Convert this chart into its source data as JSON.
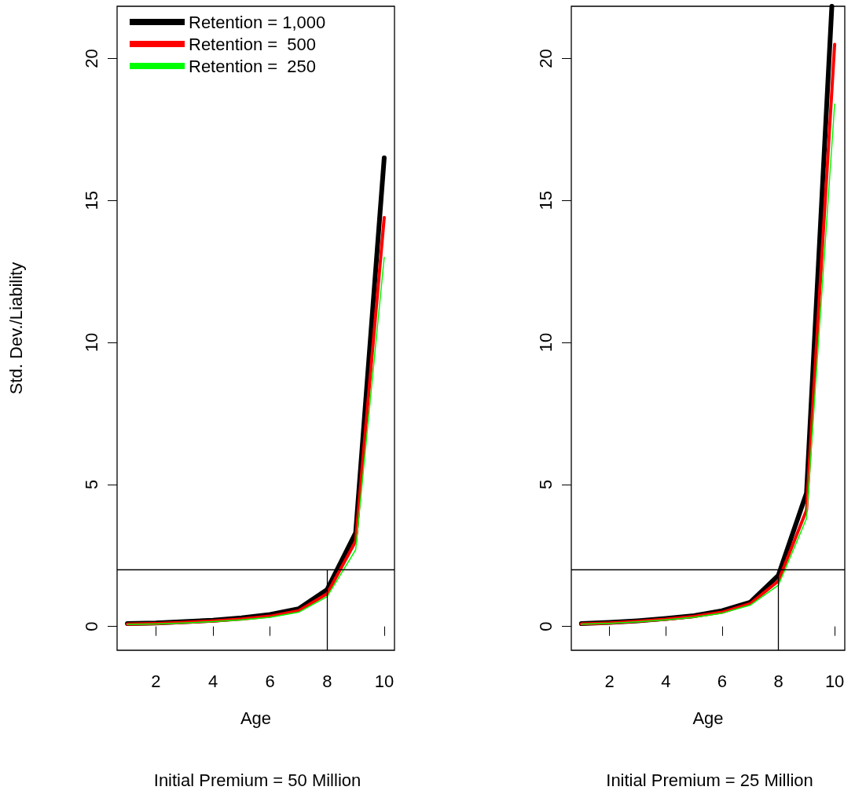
{
  "chart_data": [
    {
      "type": "line",
      "subtitle": "Initial Premium = 50 Million",
      "xlabel": "Age",
      "ylabel": "Std. Dev./Liability",
      "x": [
        1,
        2,
        3,
        4,
        5,
        6,
        7,
        8,
        9,
        10
      ],
      "series": [
        {
          "name": "Retention = 1,000",
          "color": "#000000",
          "values": [
            0.1,
            0.12,
            0.17,
            0.22,
            0.3,
            0.42,
            0.62,
            1.3,
            3.3,
            16.5
          ]
        },
        {
          "name": "Retention =  500",
          "color": "#ff0000",
          "values": [
            0.08,
            0.1,
            0.14,
            0.19,
            0.26,
            0.36,
            0.55,
            1.15,
            3.0,
            14.4
          ]
        },
        {
          "name": "Retention =  250",
          "color": "#00ff00",
          "values": [
            0.07,
            0.09,
            0.12,
            0.17,
            0.23,
            0.32,
            0.5,
            1.05,
            2.7,
            13.0
          ]
        }
      ],
      "xlim": [
        0.64,
        10.36
      ],
      "xticks": [
        2,
        4,
        6,
        8,
        10
      ],
      "ylim": [
        -0.84,
        21.84
      ],
      "yticks": [
        0,
        5,
        10,
        15,
        20
      ],
      "ref_lines": [
        {
          "axis": "y",
          "value": 2
        },
        {
          "axis": "x",
          "value": 8
        }
      ],
      "legend": "top",
      "marker": "none",
      "line_style": "solid"
    },
    {
      "type": "line",
      "subtitle": "Initial Premium = 25 Million",
      "xlabel": "Age",
      "x": [
        1,
        2,
        3,
        4,
        5,
        6,
        7,
        8,
        9,
        10
      ],
      "series": [
        {
          "color": "#000000",
          "x": [
            1,
            2,
            3,
            4,
            5,
            6,
            7,
            8,
            9,
            9.9
          ],
          "values": [
            0.1,
            0.14,
            0.2,
            0.28,
            0.38,
            0.55,
            0.85,
            1.8,
            4.7,
            21.84
          ]
        },
        {
          "color": "#ff0000",
          "values": [
            0.09,
            0.12,
            0.18,
            0.25,
            0.35,
            0.5,
            0.8,
            1.6,
            4.1,
            20.5
          ]
        },
        {
          "color": "#00ff00",
          "values": [
            0.08,
            0.11,
            0.16,
            0.23,
            0.32,
            0.47,
            0.75,
            1.45,
            3.8,
            18.4
          ]
        }
      ],
      "xlim": [
        0.64,
        10.36
      ],
      "xticks": [
        2,
        4,
        6,
        8,
        10
      ],
      "ylim": [
        -0.84,
        21.84
      ],
      "yticks": [
        0,
        5,
        10,
        15,
        20
      ],
      "ref_lines": [
        {
          "axis": "y",
          "value": 2
        },
        {
          "axis": "x",
          "value": 8
        }
      ],
      "legend": false,
      "marker": "none",
      "line_style": "solid"
    }
  ]
}
